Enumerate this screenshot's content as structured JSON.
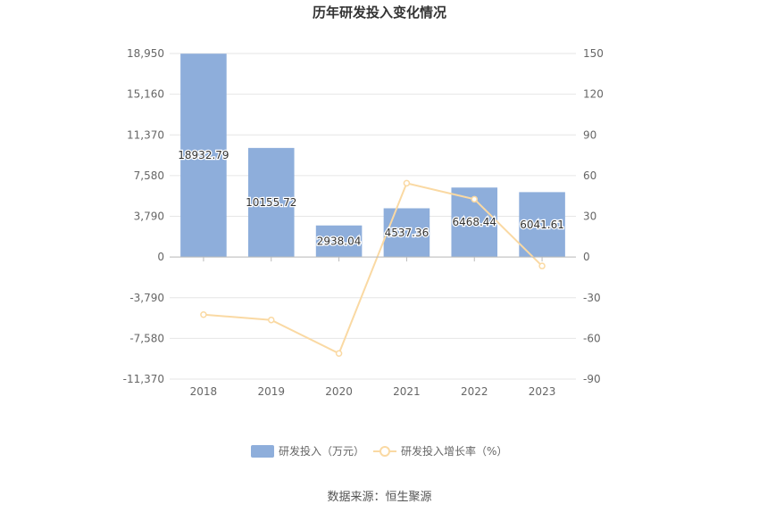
{
  "chart_data": {
    "type": "bar",
    "title": "历年研发投入变化情况",
    "categories": [
      "2018",
      "2019",
      "2020",
      "2021",
      "2022",
      "2023"
    ],
    "series": [
      {
        "name": "研发投入（万元）",
        "type": "bar",
        "axis": "left",
        "color": "#8eaedb",
        "values": [
          18932.79,
          10155.72,
          2938.04,
          4537.36,
          6468.44,
          6041.61
        ],
        "labels": [
          "18932.79",
          "10155.72",
          "2938.04",
          "4537.36",
          "6468.44",
          "6041.61"
        ]
      },
      {
        "name": "研发投入增长率（%）",
        "type": "line",
        "axis": "right",
        "color": "#fad9a3",
        "values": [
          -42.5,
          -46.4,
          -71.1,
          54.4,
          42.6,
          -6.6
        ]
      }
    ],
    "y_left": {
      "ticks": [
        "18,950",
        "15,160",
        "11,370",
        "7,580",
        "3,790",
        "0",
        "-3,790",
        "-7,580",
        "-11,370"
      ],
      "ylim": [
        -11370,
        18950
      ]
    },
    "y_right": {
      "ticks": [
        "150",
        "120",
        "90",
        "60",
        "30",
        "0",
        "-30",
        "-60",
        "-90"
      ],
      "ylim": [
        -90,
        150
      ]
    },
    "grid": true,
    "legend": "bottom-center"
  },
  "footer": {
    "source": "数据来源：恒生聚源"
  }
}
